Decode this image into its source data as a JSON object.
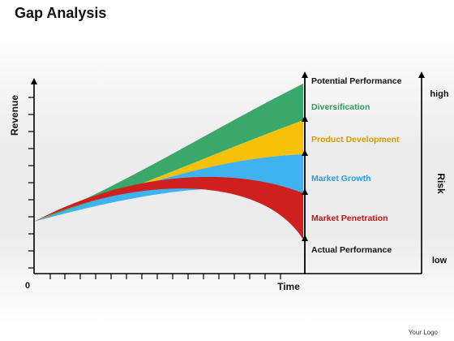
{
  "title": "Gap Analysis",
  "axes": {
    "y_label": "Revenue",
    "x_label": "Time",
    "origin_label": "0",
    "right_label": "Risk",
    "risk_high": "high",
    "risk_low": "low"
  },
  "bands": [
    {
      "label": "Potential Performance",
      "color": "#111111"
    },
    {
      "label": "Diversification",
      "color": "#2e9c5e",
      "fill": "#3aa86a"
    },
    {
      "label": "Product Development",
      "color": "#d99a00",
      "fill": "#f7c10a"
    },
    {
      "label": "Market Growth",
      "color": "#2a9ee0",
      "fill": "#3fb2f0"
    },
    {
      "label": "Market Penetration",
      "color": "#c0161b",
      "fill": "#cf1f1f"
    },
    {
      "label": "Actual Performance",
      "color": "#111111"
    }
  ],
  "footer": {
    "logo": "Your Logo"
  }
}
